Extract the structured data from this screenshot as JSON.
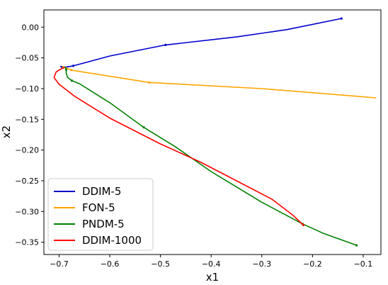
{
  "chart_data": {
    "type": "line",
    "title": "",
    "xlabel": "x1",
    "ylabel": "x2",
    "xlim": [
      -0.73,
      -0.065
    ],
    "ylim": [
      -0.37,
      0.028
    ],
    "xticks": [
      -0.7,
      -0.6,
      -0.5,
      -0.4,
      -0.3,
      -0.2,
      -0.1
    ],
    "xtick_labels": [
      "−0.7",
      "−0.6",
      "−0.5",
      "−0.4",
      "−0.3",
      "−0.2",
      "−0.1"
    ],
    "yticks": [
      0.0,
      -0.05,
      -0.1,
      -0.15,
      -0.2,
      -0.25,
      -0.3,
      -0.35
    ],
    "ytick_labels": [
      "0.00",
      "−0.05",
      "−0.10",
      "−0.15",
      "−0.20",
      "−0.25",
      "−0.30",
      "−0.35"
    ],
    "grid": false,
    "legend_position": "lower-left",
    "series": [
      {
        "name": "DDIM-5",
        "color": "#0000cc",
        "points": [
          [
            -0.143,
            0.014
          ],
          [
            -0.25,
            -0.004
          ],
          [
            -0.35,
            -0.016
          ],
          [
            -0.49,
            -0.029
          ],
          [
            -0.6,
            -0.047
          ],
          [
            -0.672,
            -0.063
          ],
          [
            -0.686,
            -0.065
          ],
          [
            -0.694,
            -0.065
          ],
          [
            -0.697,
            -0.064
          ]
        ],
        "markers": [
          [
            -0.143,
            0.014
          ],
          [
            -0.49,
            -0.029
          ],
          [
            -0.672,
            -0.063
          ],
          [
            -0.694,
            -0.065
          ]
        ]
      },
      {
        "name": "FON-5",
        "color": "#ffa500",
        "points": [
          [
            -0.075,
            -0.115
          ],
          [
            -0.3,
            -0.1
          ],
          [
            -0.522,
            -0.09
          ],
          [
            -0.6,
            -0.08
          ],
          [
            -0.676,
            -0.07
          ],
          [
            -0.687,
            -0.066
          ],
          [
            -0.692,
            -0.065
          ]
        ],
        "markers": [
          [
            -0.522,
            -0.09
          ],
          [
            -0.676,
            -0.07
          ],
          [
            -0.692,
            -0.065
          ]
        ]
      },
      {
        "name": "PNDM-5",
        "color": "#008000",
        "points": [
          [
            -0.113,
            -0.355
          ],
          [
            -0.18,
            -0.335
          ],
          [
            -0.22,
            -0.32
          ],
          [
            -0.3,
            -0.285
          ],
          [
            -0.4,
            -0.235
          ],
          [
            -0.47,
            -0.195
          ],
          [
            -0.533,
            -0.163
          ],
          [
            -0.6,
            -0.123
          ],
          [
            -0.66,
            -0.092
          ],
          [
            -0.675,
            -0.087
          ],
          [
            -0.683,
            -0.082
          ],
          [
            -0.686,
            -0.075
          ],
          [
            -0.686,
            -0.069
          ],
          [
            -0.688,
            -0.065
          ]
        ],
        "markers": [
          [
            -0.113,
            -0.355
          ],
          [
            -0.22,
            -0.32
          ],
          [
            -0.533,
            -0.163
          ],
          [
            -0.675,
            -0.087
          ],
          [
            -0.686,
            -0.069
          ]
        ]
      },
      {
        "name": "DDIM-1000",
        "color": "#ff0000",
        "points": [
          [
            -0.218,
            -0.322
          ],
          [
            -0.24,
            -0.305
          ],
          [
            -0.28,
            -0.28
          ],
          [
            -0.35,
            -0.25
          ],
          [
            -0.42,
            -0.22
          ],
          [
            -0.5,
            -0.19
          ],
          [
            -0.6,
            -0.148
          ],
          [
            -0.67,
            -0.112
          ],
          [
            -0.7,
            -0.093
          ],
          [
            -0.71,
            -0.082
          ],
          [
            -0.706,
            -0.073
          ],
          [
            -0.696,
            -0.068
          ],
          [
            -0.69,
            -0.066
          ]
        ],
        "markers": [
          [
            -0.218,
            -0.322
          ]
        ]
      }
    ]
  }
}
